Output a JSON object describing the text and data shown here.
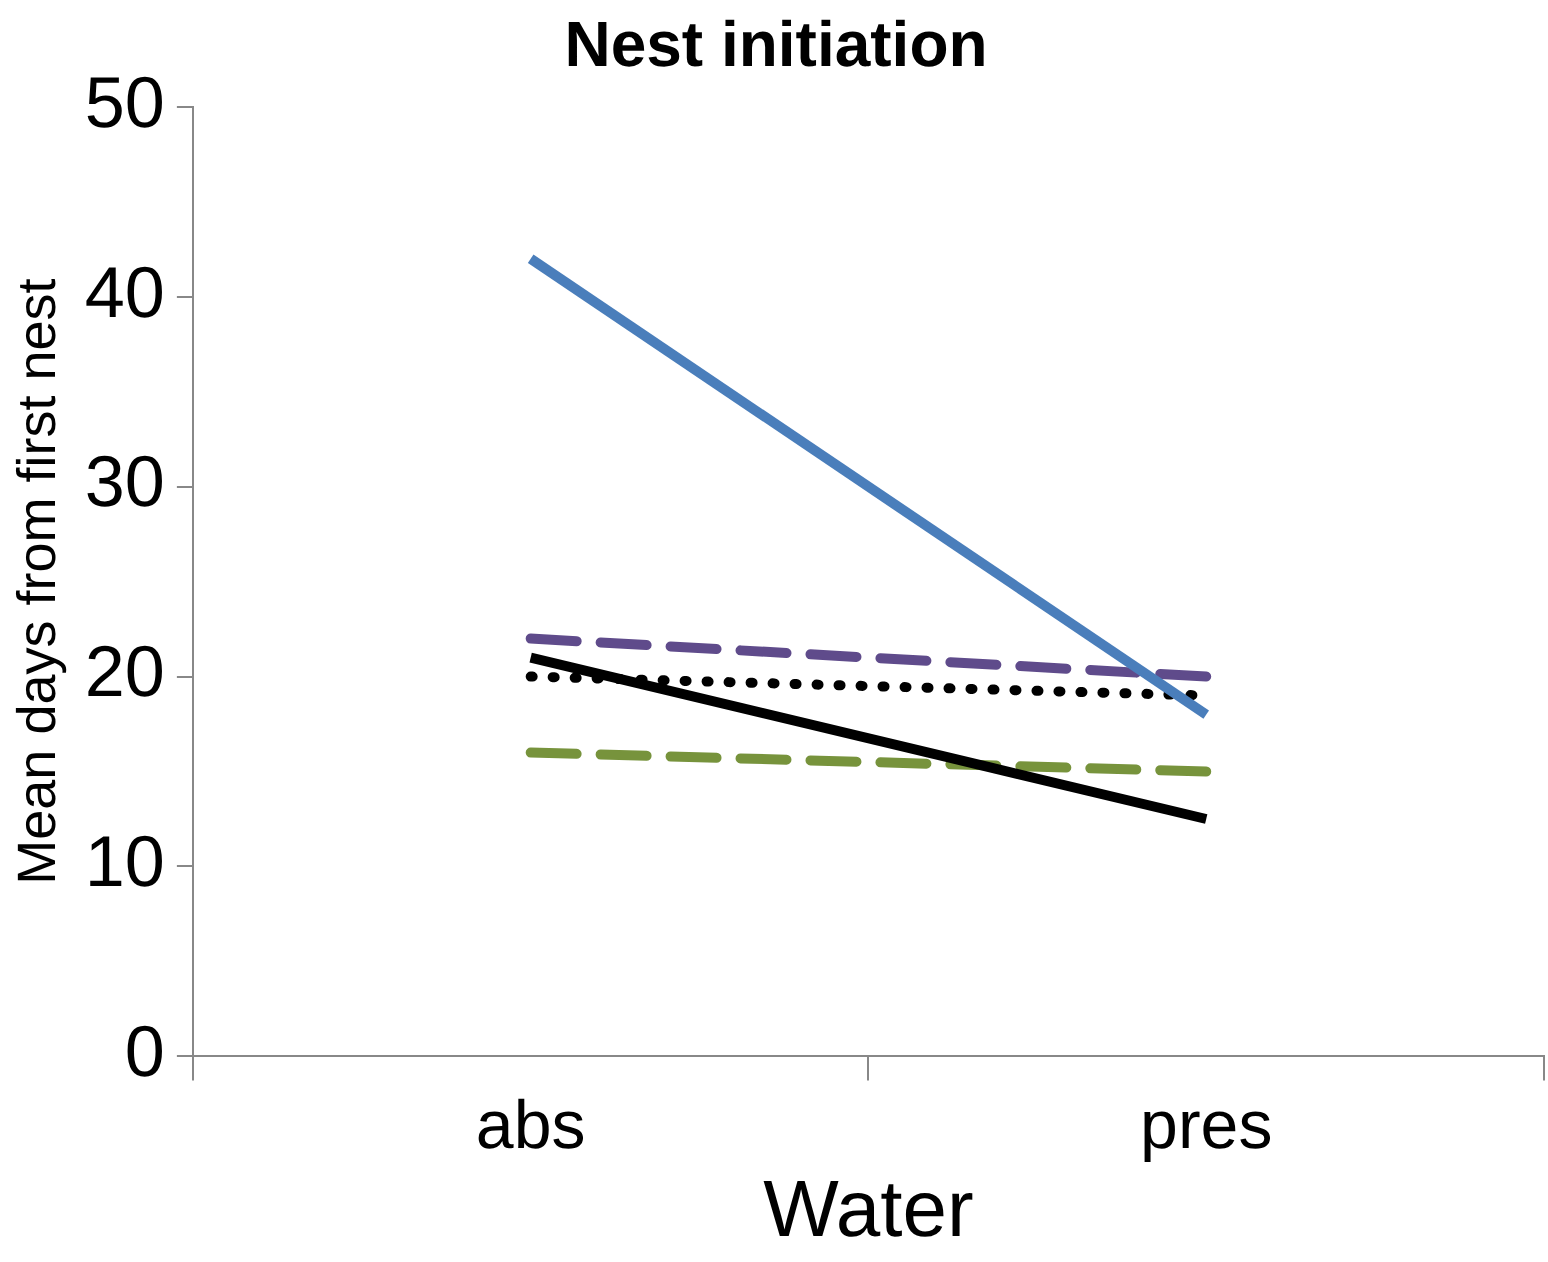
{
  "chart_data": {
    "type": "line",
    "title": "Nest initiation",
    "xlabel": "Water",
    "ylabel": "Mean days from first nest",
    "categories": [
      "abs",
      "pres"
    ],
    "series": [
      {
        "color": "#4a7ebb",
        "values": [
          42,
          18
        ],
        "line_style": "solid"
      },
      {
        "color": "#5f4b8b",
        "values": [
          22,
          20
        ],
        "line_style": "dashed"
      },
      {
        "color": "#000000",
        "values": [
          20,
          19
        ],
        "line_style": "dotted"
      },
      {
        "color": "#000000",
        "values": [
          21,
          12.5
        ],
        "line_style": "solid"
      },
      {
        "color": "#77933c",
        "values": [
          16,
          15
        ],
        "line_style": "dashed"
      }
    ],
    "ylim": [
      0,
      50
    ],
    "yticks": [
      0,
      10,
      20,
      30,
      40,
      50
    ],
    "grid": false,
    "legend": false,
    "marker": "none"
  }
}
